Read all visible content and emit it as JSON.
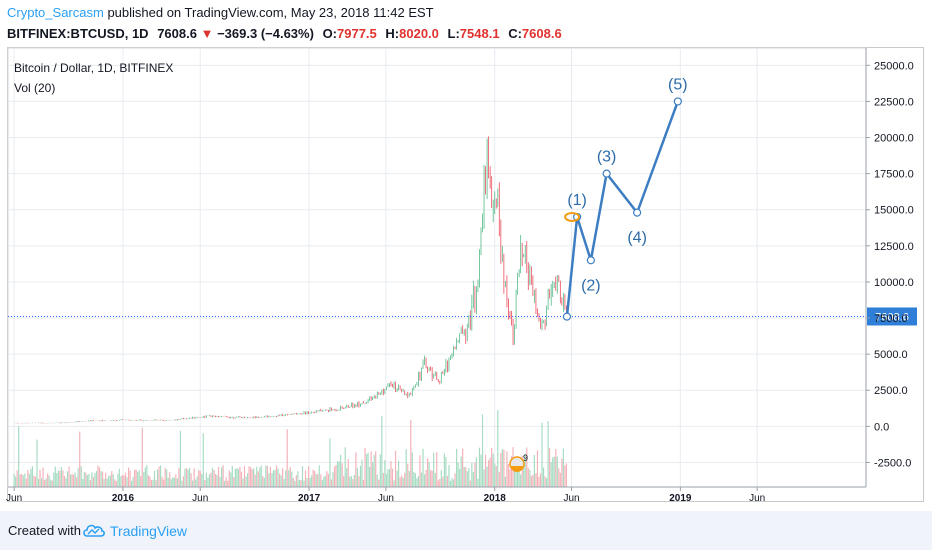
{
  "header": {
    "author": "Crypto_Sarcasm",
    "published": "published on TradingView.com, May 23, 2018 11:42 EST",
    "symbol": "BITFINEX:BTCUSD, 1D",
    "last": "7608.6",
    "change": "−369.3 (−4.63%)",
    "open_label": "O:",
    "open": "7977.5",
    "high_label": "H:",
    "high": "8020.0",
    "low_label": "L:",
    "low": "7548.1",
    "close_label": "C:",
    "close": "7608.6"
  },
  "legend": {
    "title": "Bitcoin / Dollar, 1D, BITFINEX",
    "volume": "Vol (20)"
  },
  "footer": {
    "created_with": "Created with",
    "brand": "TradingView"
  },
  "colors": {
    "up": "#53b987",
    "down": "#eb4d5c",
    "projection": "#3d7ec2",
    "price_line": "#2962ff",
    "price_badge": "#2f7fd8",
    "grid": "#e8ecf0",
    "wave_label": "#2d6ca8",
    "brand": "#2a9ff3"
  },
  "chart_data": {
    "type": "line",
    "title": "Bitcoin / Dollar, 1D, BITFINEX",
    "y_axis": {
      "range": [
        -4200,
        26200
      ],
      "ticks": [
        "25000.0",
        "22500.0",
        "20000.0",
        "17500.0",
        "15000.0",
        "12500.0",
        "10000.0",
        "7500.0",
        "5000.0",
        "2500.0",
        "0.0",
        "-2500.0"
      ],
      "tick_values": [
        25000,
        22500,
        20000,
        17500,
        15000,
        12500,
        10000,
        7500,
        5000,
        2500,
        0,
        -2500
      ],
      "side": "right",
      "last_price_label": "7608.6",
      "last_price": 7608.6
    },
    "x_axis": {
      "range": [
        "2015-05-20",
        "2020-01-01"
      ],
      "ticks": [
        "Jun",
        "2016",
        "Jun",
        "2017",
        "Jun",
        "2018",
        "Jun",
        "2019",
        "Jun"
      ],
      "tick_dates": [
        "2015-06-01",
        "2016-01-01",
        "2016-06-01",
        "2017-01-01",
        "2017-06-01",
        "2018-01-01",
        "2018-06-01",
        "2019-01-01",
        "2019-06-01"
      ]
    },
    "grid": true,
    "series": [
      {
        "kind": "candles",
        "points": [
          {
            "x": "2015-06-01",
            "y": 230
          },
          {
            "x": "2015-09-01",
            "y": 235
          },
          {
            "x": "2015-11-04",
            "y": 400
          },
          {
            "x": "2015-12-01",
            "y": 380
          },
          {
            "x": "2016-01-01",
            "y": 430
          },
          {
            "x": "2016-04-01",
            "y": 420
          },
          {
            "x": "2016-06-15",
            "y": 700
          },
          {
            "x": "2016-09-01",
            "y": 600
          },
          {
            "x": "2016-11-01",
            "y": 730
          },
          {
            "x": "2017-01-01",
            "y": 980
          },
          {
            "x": "2017-03-01",
            "y": 1200
          },
          {
            "x": "2017-05-01",
            "y": 1800
          },
          {
            "x": "2017-06-12",
            "y": 2900
          },
          {
            "x": "2017-07-15",
            "y": 2000
          },
          {
            "x": "2017-08-15",
            "y": 4300
          },
          {
            "x": "2017-09-15",
            "y": 3200
          },
          {
            "x": "2017-10-15",
            "y": 5600
          },
          {
            "x": "2017-11-15",
            "y": 7800
          },
          {
            "x": "2017-12-01",
            "y": 10800
          },
          {
            "x": "2017-12-17",
            "y": 19800
          },
          {
            "x": "2017-12-30",
            "y": 13500
          },
          {
            "x": "2018-01-06",
            "y": 17000
          },
          {
            "x": "2018-01-16",
            "y": 11000
          },
          {
            "x": "2018-02-06",
            "y": 6500
          },
          {
            "x": "2018-02-20",
            "y": 11500
          },
          {
            "x": "2018-03-05",
            "y": 11200
          },
          {
            "x": "2018-04-01",
            "y": 6600
          },
          {
            "x": "2018-04-25",
            "y": 9700
          },
          {
            "x": "2018-05-05",
            "y": 9800
          },
          {
            "x": "2018-05-23",
            "y": 7608.6
          }
        ]
      },
      {
        "kind": "elliott_projection",
        "points": [
          {
            "x": "2018-05-23",
            "y": 7600,
            "label": ""
          },
          {
            "x": "2018-06-12",
            "y": 14500,
            "label": "(1)"
          },
          {
            "x": "2018-07-09",
            "y": 11500,
            "label": "(2)"
          },
          {
            "x": "2018-08-09",
            "y": 17500,
            "label": "(3)"
          },
          {
            "x": "2018-10-08",
            "y": 14800,
            "label": "(4)"
          },
          {
            "x": "2018-12-27",
            "y": 22500,
            "label": "(5)"
          }
        ]
      },
      {
        "kind": "volume",
        "label": "Vol (20)"
      }
    ]
  }
}
